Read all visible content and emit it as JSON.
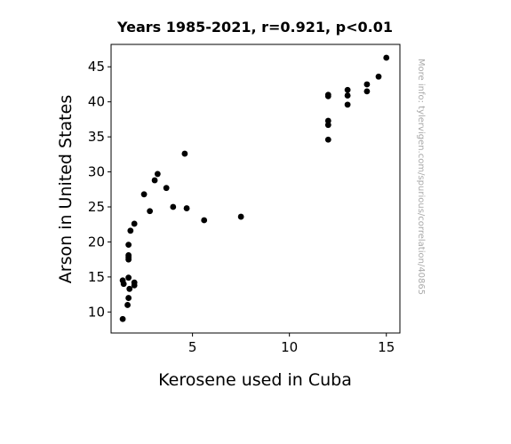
{
  "chart_data": {
    "type": "scatter",
    "title": "Years 1985-2021, r=0.921, p<0.01",
    "xlabel": "Kerosene used in Cuba",
    "ylabel": "Arson in United States",
    "xlim": [
      0.8,
      15.7
    ],
    "ylim": [
      7.0,
      48.2
    ],
    "xticks": [
      5,
      10,
      15
    ],
    "yticks": [
      10,
      15,
      20,
      25,
      30,
      35,
      40,
      45
    ],
    "grid": false,
    "legend": "none",
    "marker_color": "#000000",
    "points": [
      {
        "x": 15.0,
        "y": 46.3
      },
      {
        "x": 14.6,
        "y": 43.6
      },
      {
        "x": 14.0,
        "y": 42.5
      },
      {
        "x": 14.0,
        "y": 41.5
      },
      {
        "x": 13.0,
        "y": 41.7
      },
      {
        "x": 13.0,
        "y": 40.9
      },
      {
        "x": 13.0,
        "y": 39.6
      },
      {
        "x": 12.0,
        "y": 41.0
      },
      {
        "x": 12.0,
        "y": 40.8
      },
      {
        "x": 12.0,
        "y": 37.3
      },
      {
        "x": 12.0,
        "y": 36.7
      },
      {
        "x": 12.0,
        "y": 34.6
      },
      {
        "x": 7.5,
        "y": 23.6
      },
      {
        "x": 5.6,
        "y": 23.1
      },
      {
        "x": 4.7,
        "y": 24.8
      },
      {
        "x": 4.6,
        "y": 32.6
      },
      {
        "x": 4.0,
        "y": 25.0
      },
      {
        "x": 3.65,
        "y": 27.7
      },
      {
        "x": 3.2,
        "y": 29.7
      },
      {
        "x": 3.05,
        "y": 28.8
      },
      {
        "x": 2.8,
        "y": 24.4
      },
      {
        "x": 2.5,
        "y": 26.8
      },
      {
        "x": 2.0,
        "y": 22.6
      },
      {
        "x": 1.8,
        "y": 21.6
      },
      {
        "x": 1.7,
        "y": 19.6
      },
      {
        "x": 1.7,
        "y": 18.1
      },
      {
        "x": 1.7,
        "y": 17.8
      },
      {
        "x": 1.7,
        "y": 17.5
      },
      {
        "x": 1.7,
        "y": 14.9
      },
      {
        "x": 1.75,
        "y": 13.3
      },
      {
        "x": 2.0,
        "y": 14.2
      },
      {
        "x": 2.0,
        "y": 13.8
      },
      {
        "x": 1.4,
        "y": 14.5
      },
      {
        "x": 1.45,
        "y": 14.0
      },
      {
        "x": 1.7,
        "y": 12.0
      },
      {
        "x": 1.65,
        "y": 11.0
      },
      {
        "x": 1.4,
        "y": 9.0
      }
    ]
  },
  "side_note": "More info: tylervigen.com/spurious/correlation/40865"
}
